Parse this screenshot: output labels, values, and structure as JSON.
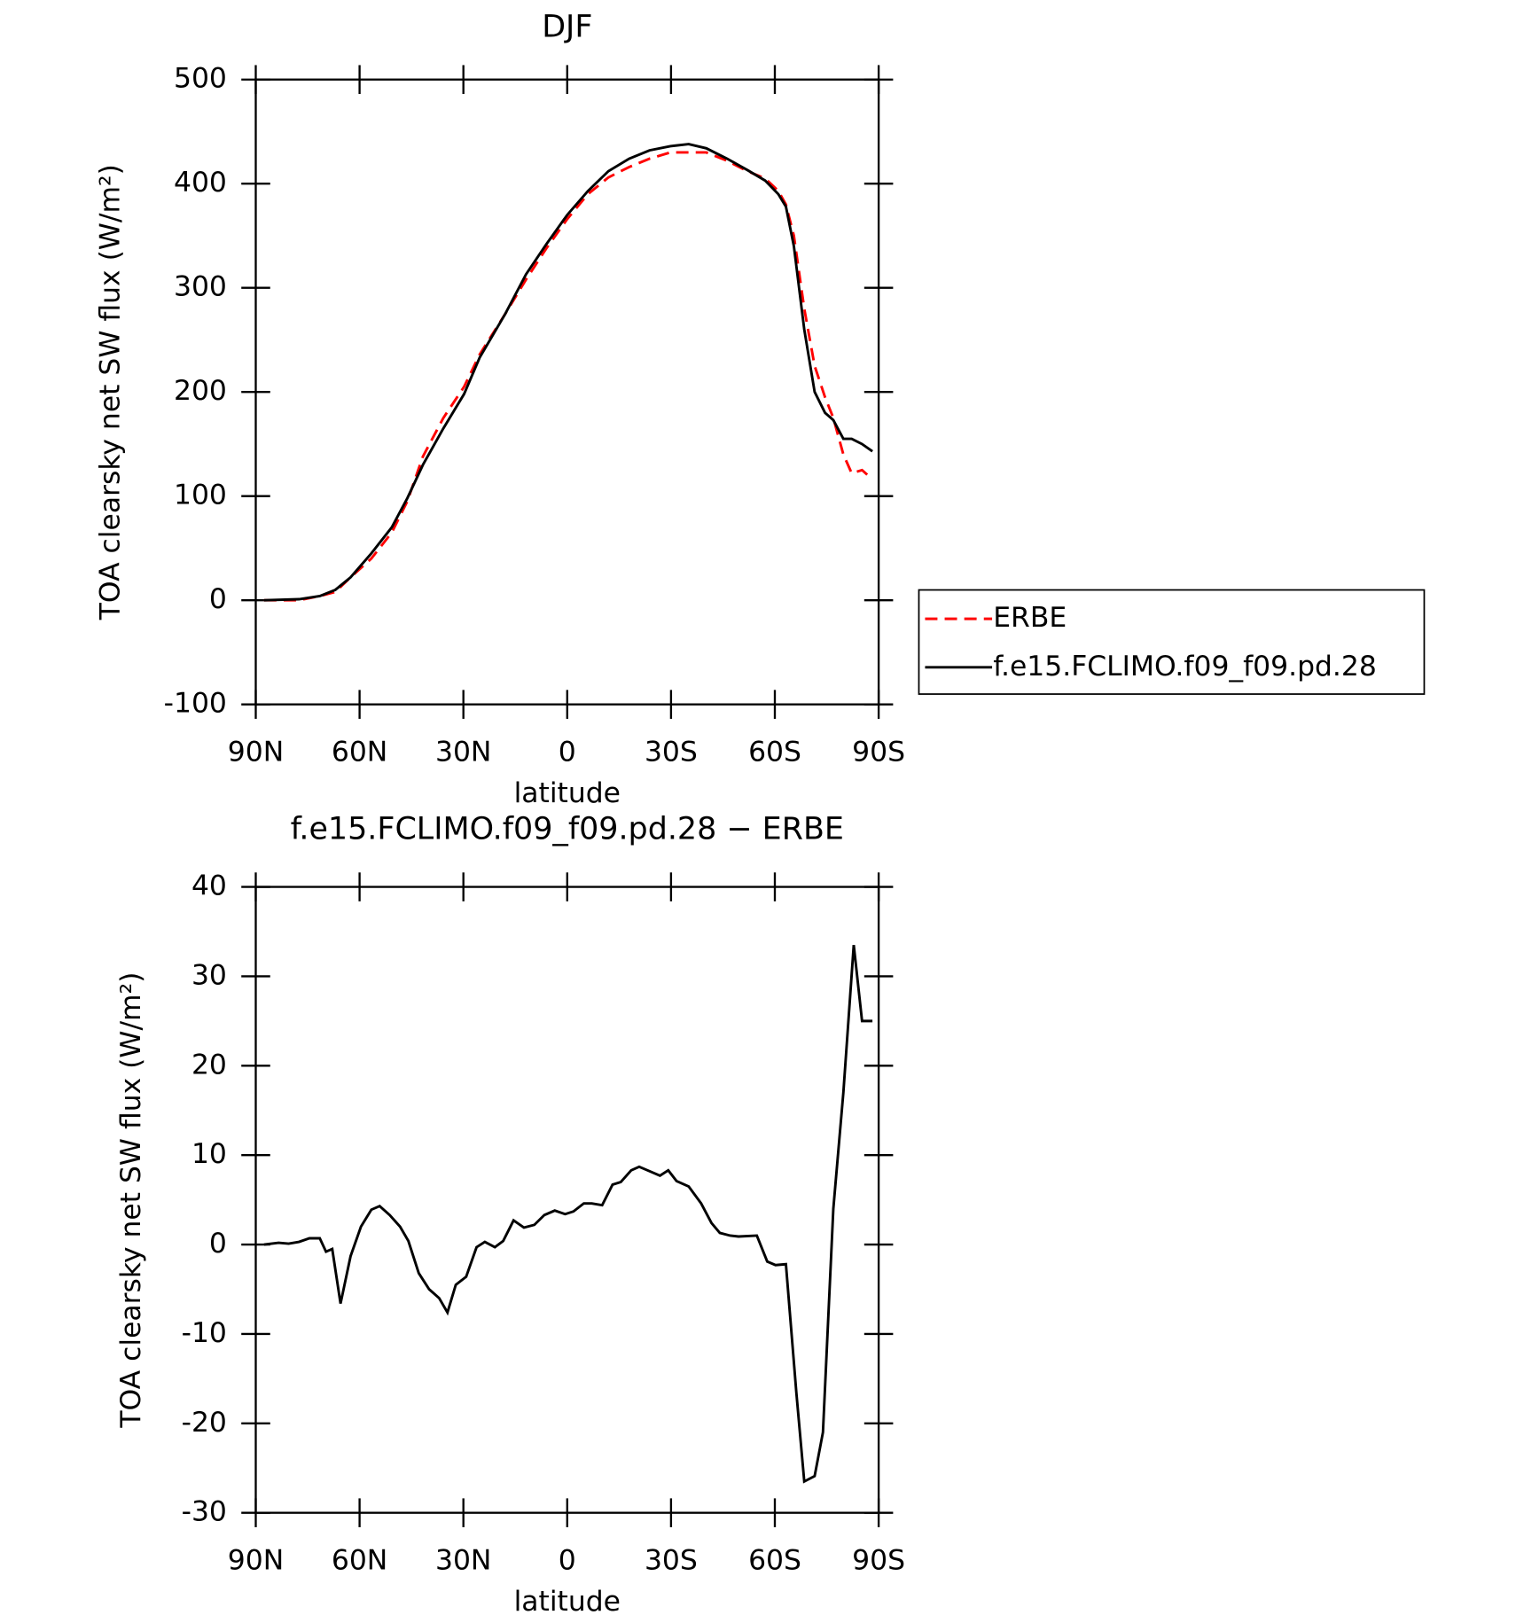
{
  "chart_data": [
    {
      "type": "line",
      "title": "DJF",
      "xlabel": "latitude",
      "ylabel": "TOA clearsky net SW flux (W/m²)",
      "xlim": [
        90,
        -90
      ],
      "ylim": [
        -100,
        500
      ],
      "xticks": [
        {
          "value": 90,
          "label": "90N"
        },
        {
          "value": 60,
          "label": "60N"
        },
        {
          "value": 30,
          "label": "30N"
        },
        0,
        {
          "value": -30,
          "label": "30S"
        },
        {
          "value": -60,
          "label": "60S"
        },
        {
          "value": -90,
          "label": "90S"
        }
      ],
      "yticks": [
        -100,
        0,
        100,
        200,
        300,
        400,
        500
      ],
      "legend": "right",
      "x": [
        87.6,
        77.5,
        71.5,
        67,
        62.6,
        56.6,
        50.7,
        46.2,
        41.7,
        35.8,
        29.8,
        25.3,
        17.9,
        11.9,
        6,
        0,
        -6,
        -11.9,
        -17.9,
        -23.8,
        -29.8,
        -35.1,
        -40.2,
        -46.2,
        -52.1,
        -57.2,
        -61,
        -63.2,
        -65.5,
        -68.5,
        -71.5,
        -74.5,
        -76.9,
        -79.8,
        -82.2,
        -85.2,
        -88.2
      ],
      "series": [
        {
          "name": "ERBE",
          "color": "#ff0000",
          "dash": true,
          "values": [
            0,
            0,
            4,
            8,
            22,
            40,
            65,
            95,
            138,
            175,
            205,
            236,
            275,
            308,
            338,
            366,
            390,
            406,
            416,
            424,
            430,
            430,
            430,
            422,
            412,
            405,
            393,
            380,
            350,
            280,
            225,
            195,
            175,
            140,
            122,
            125,
            116
          ]
        },
        {
          "name": "f.e15.FCLIMO.f09_f09.pd.28",
          "color": "#000000",
          "dash": false,
          "values": [
            0,
            1,
            4,
            10,
            22,
            45,
            70,
            98,
            130,
            165,
            198,
            233,
            275,
            313,
            342,
            370,
            393,
            412,
            424,
            432,
            436,
            438,
            434,
            424,
            413,
            403,
            390,
            378,
            340,
            260,
            200,
            180,
            173,
            155,
            155,
            150,
            143
          ]
        }
      ]
    },
    {
      "type": "line",
      "title": "f.e15.FCLIMO.f09_f09.pd.28 − ERBE",
      "xlabel": "latitude",
      "ylabel": "TOA clearsky net SW flux (W/m²)",
      "xlim": [
        90,
        -90
      ],
      "ylim": [
        -30,
        40
      ],
      "xticks": [
        {
          "value": 90,
          "label": "90N"
        },
        {
          "value": 60,
          "label": "60N"
        },
        {
          "value": 30,
          "label": "30N"
        },
        0,
        {
          "value": -30,
          "label": "30S"
        },
        {
          "value": -60,
          "label": "60S"
        },
        {
          "value": -90,
          "label": "90S"
        }
      ],
      "yticks": [
        -30,
        -20,
        -10,
        0,
        10,
        20,
        30,
        40
      ],
      "color": "#000000",
      "x": [
        87.6,
        83.4,
        80.5,
        77.5,
        74.5,
        71.5,
        69.7,
        67.9,
        65.5,
        62.6,
        59.6,
        56.6,
        54.2,
        51.3,
        48.3,
        45.9,
        42.9,
        39.9,
        37,
        34.6,
        32.2,
        29.2,
        26.2,
        23.8,
        20.9,
        18.5,
        15.5,
        12.5,
        9.5,
        6.6,
        3.6,
        0.6,
        -1.8,
        -4.8,
        -7.1,
        -10.1,
        -13.1,
        -15.5,
        -18.5,
        -20.8,
        -23.8,
        -26.8,
        -29.2,
        -31.6,
        -35.1,
        -38.7,
        -41.7,
        -44.1,
        -47.1,
        -49.5,
        -54.8,
        -57.8,
        -60.2,
        -63.2,
        -66.2,
        -68.5,
        -71.5,
        -73.9,
        -76.9,
        -79.8,
        -82.8,
        -85.2,
        -88.2
      ],
      "values": [
        0,
        0.2,
        0.1,
        0.3,
        0.7,
        0.7,
        -0.8,
        -0.5,
        -6.6,
        -1.3,
        2,
        3.9,
        4.3,
        3.3,
        2,
        0.4,
        -3.2,
        -5,
        -6,
        -7.6,
        -4.5,
        -3.6,
        -0.3,
        0.3,
        -0.3,
        0.4,
        2.7,
        1.9,
        2.2,
        3.3,
        3.8,
        3.4,
        3.7,
        4.6,
        4.6,
        4.4,
        6.7,
        7,
        8.3,
        8.7,
        8.2,
        7.7,
        8.3,
        7.1,
        6.5,
        4.6,
        2.4,
        1.3,
        1,
        0.9,
        1,
        -1.9,
        -2.3,
        -2.2,
        -16.5,
        -26.5,
        -25.9,
        -21,
        4,
        17,
        33.5,
        25,
        25
      ]
    }
  ]
}
